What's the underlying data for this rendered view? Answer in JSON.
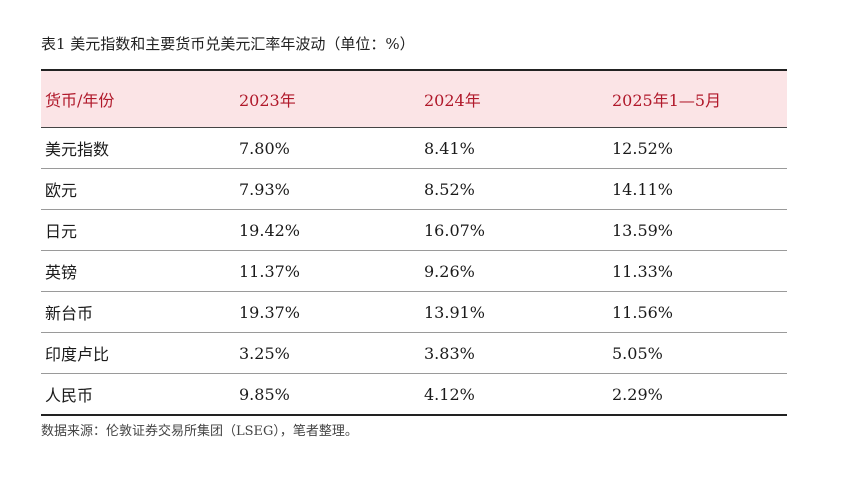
{
  "caption": "表1  美元指数和主要货币兑美元汇率年波动（单位：%）",
  "table": {
    "headers": [
      "货币/年份",
      "2023年",
      "2024年",
      "2025年1—5月"
    ],
    "rows": [
      {
        "currency": "美元指数",
        "y2023": "7.80%",
        "y2024": "8.41%",
        "y2025": "12.52%"
      },
      {
        "currency": "欧元",
        "y2023": "7.93%",
        "y2024": "8.52%",
        "y2025": "14.11%"
      },
      {
        "currency": "日元",
        "y2023": "19.42%",
        "y2024": "16.07%",
        "y2025": "13.59%"
      },
      {
        "currency": "英镑",
        "y2023": "11.37%",
        "y2024": "9.26%",
        "y2025": "11.33%"
      },
      {
        "currency": "新台币",
        "y2023": "19.37%",
        "y2024": "13.91%",
        "y2025": "11.56%"
      },
      {
        "currency": "印度卢比",
        "y2023": "3.25%",
        "y2024": "3.83%",
        "y2025": "5.05%"
      },
      {
        "currency": "人民币",
        "y2023": "9.85%",
        "y2024": "4.12%",
        "y2025": "2.29%"
      }
    ]
  },
  "source": "数据来源：伦敦证券交易所集团（LSEG），笔者整理。",
  "colors": {
    "header_bg": "#fbe4e6",
    "header_text": "#b0182a",
    "rule": "#222222"
  }
}
